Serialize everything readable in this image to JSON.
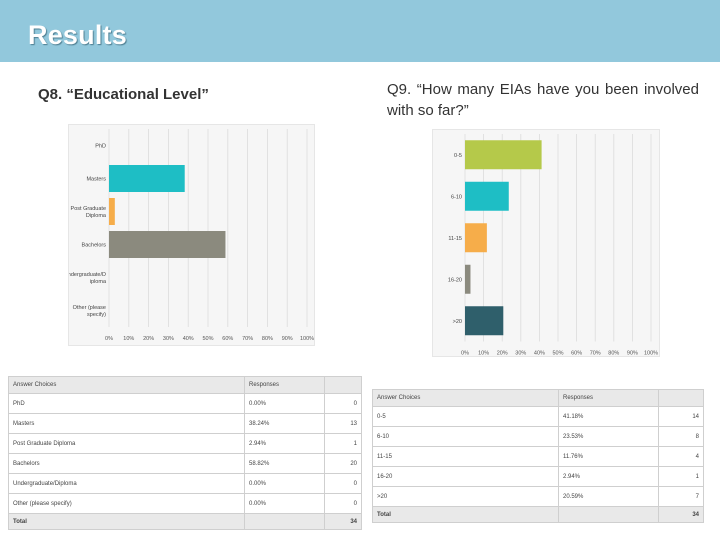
{
  "slide": {
    "title": "Results"
  },
  "q8": {
    "title": "Q8.  “Educational Level”"
  },
  "q9": {
    "title": "Q9.  “How many EIAs have you been involved with so far?”"
  },
  "chart_data": [
    {
      "type": "bar",
      "orientation": "horizontal",
      "categories": [
        "PhD",
        "Masters",
        "Post Graduate Diploma",
        "Bachelors",
        "Undergraduate/Diploma",
        "Other (please specify)"
      ],
      "category_labels": [
        [
          "PhD"
        ],
        [
          "Masters"
        ],
        [
          "Post Graduate",
          "Diploma"
        ],
        [
          "Bachelors"
        ],
        [
          "Undergraduate/D",
          "iploma"
        ],
        [
          "Other (please",
          "specify)"
        ]
      ],
      "values": [
        0,
        38.24,
        2.94,
        58.82,
        0,
        0
      ],
      "colors": [
        "#b5c94a",
        "#1ebec5",
        "#f6ad4a",
        "#8b8a7e",
        "#8b8a7e",
        "#8b8a7e"
      ],
      "xlim": [
        0,
        100
      ],
      "xticks": [
        "0%",
        "10%",
        "20%",
        "30%",
        "40%",
        "50%",
        "60%",
        "70%",
        "80%",
        "90%",
        "100%"
      ],
      "grid": true
    },
    {
      "type": "bar",
      "orientation": "horizontal",
      "categories": [
        "0-5",
        "6-10",
        "11-15",
        "16-20",
        ">20"
      ],
      "values": [
        41.18,
        23.53,
        11.76,
        2.94,
        20.59
      ],
      "colors": [
        "#b5c94a",
        "#1ebec5",
        "#f6ad4a",
        "#8b8a7e",
        "#2f5f6b"
      ],
      "xlim": [
        0,
        100
      ],
      "xticks": [
        "0%",
        "10%",
        "20%",
        "30%",
        "40%",
        "50%",
        "60%",
        "70%",
        "80%",
        "90%",
        "100%"
      ],
      "grid": true
    },
    {
      "type": "table",
      "headers": [
        "Answer Choices",
        "Responses",
        ""
      ],
      "rows": [
        [
          "PhD",
          "0.00%",
          "0"
        ],
        [
          "Masters",
          "38.24%",
          "13"
        ],
        [
          "Post Graduate Diploma",
          "2.94%",
          "1"
        ],
        [
          "Bachelors",
          "58.82%",
          "20"
        ],
        [
          "Undergraduate/Diploma",
          "0.00%",
          "0"
        ],
        [
          "Other (please specify)",
          "0.00%",
          "0"
        ]
      ],
      "total": [
        "Total",
        "",
        "34"
      ]
    },
    {
      "type": "table",
      "headers": [
        "Answer Choices",
        "Responses",
        ""
      ],
      "rows": [
        [
          "0-5",
          "41.18%",
          "14"
        ],
        [
          "6-10",
          "23.53%",
          "8"
        ],
        [
          "11-15",
          "11.76%",
          "4"
        ],
        [
          "16-20",
          "2.94%",
          "1"
        ],
        [
          ">20",
          "20.59%",
          "7"
        ]
      ],
      "total": [
        "Total",
        "",
        "34"
      ]
    }
  ]
}
